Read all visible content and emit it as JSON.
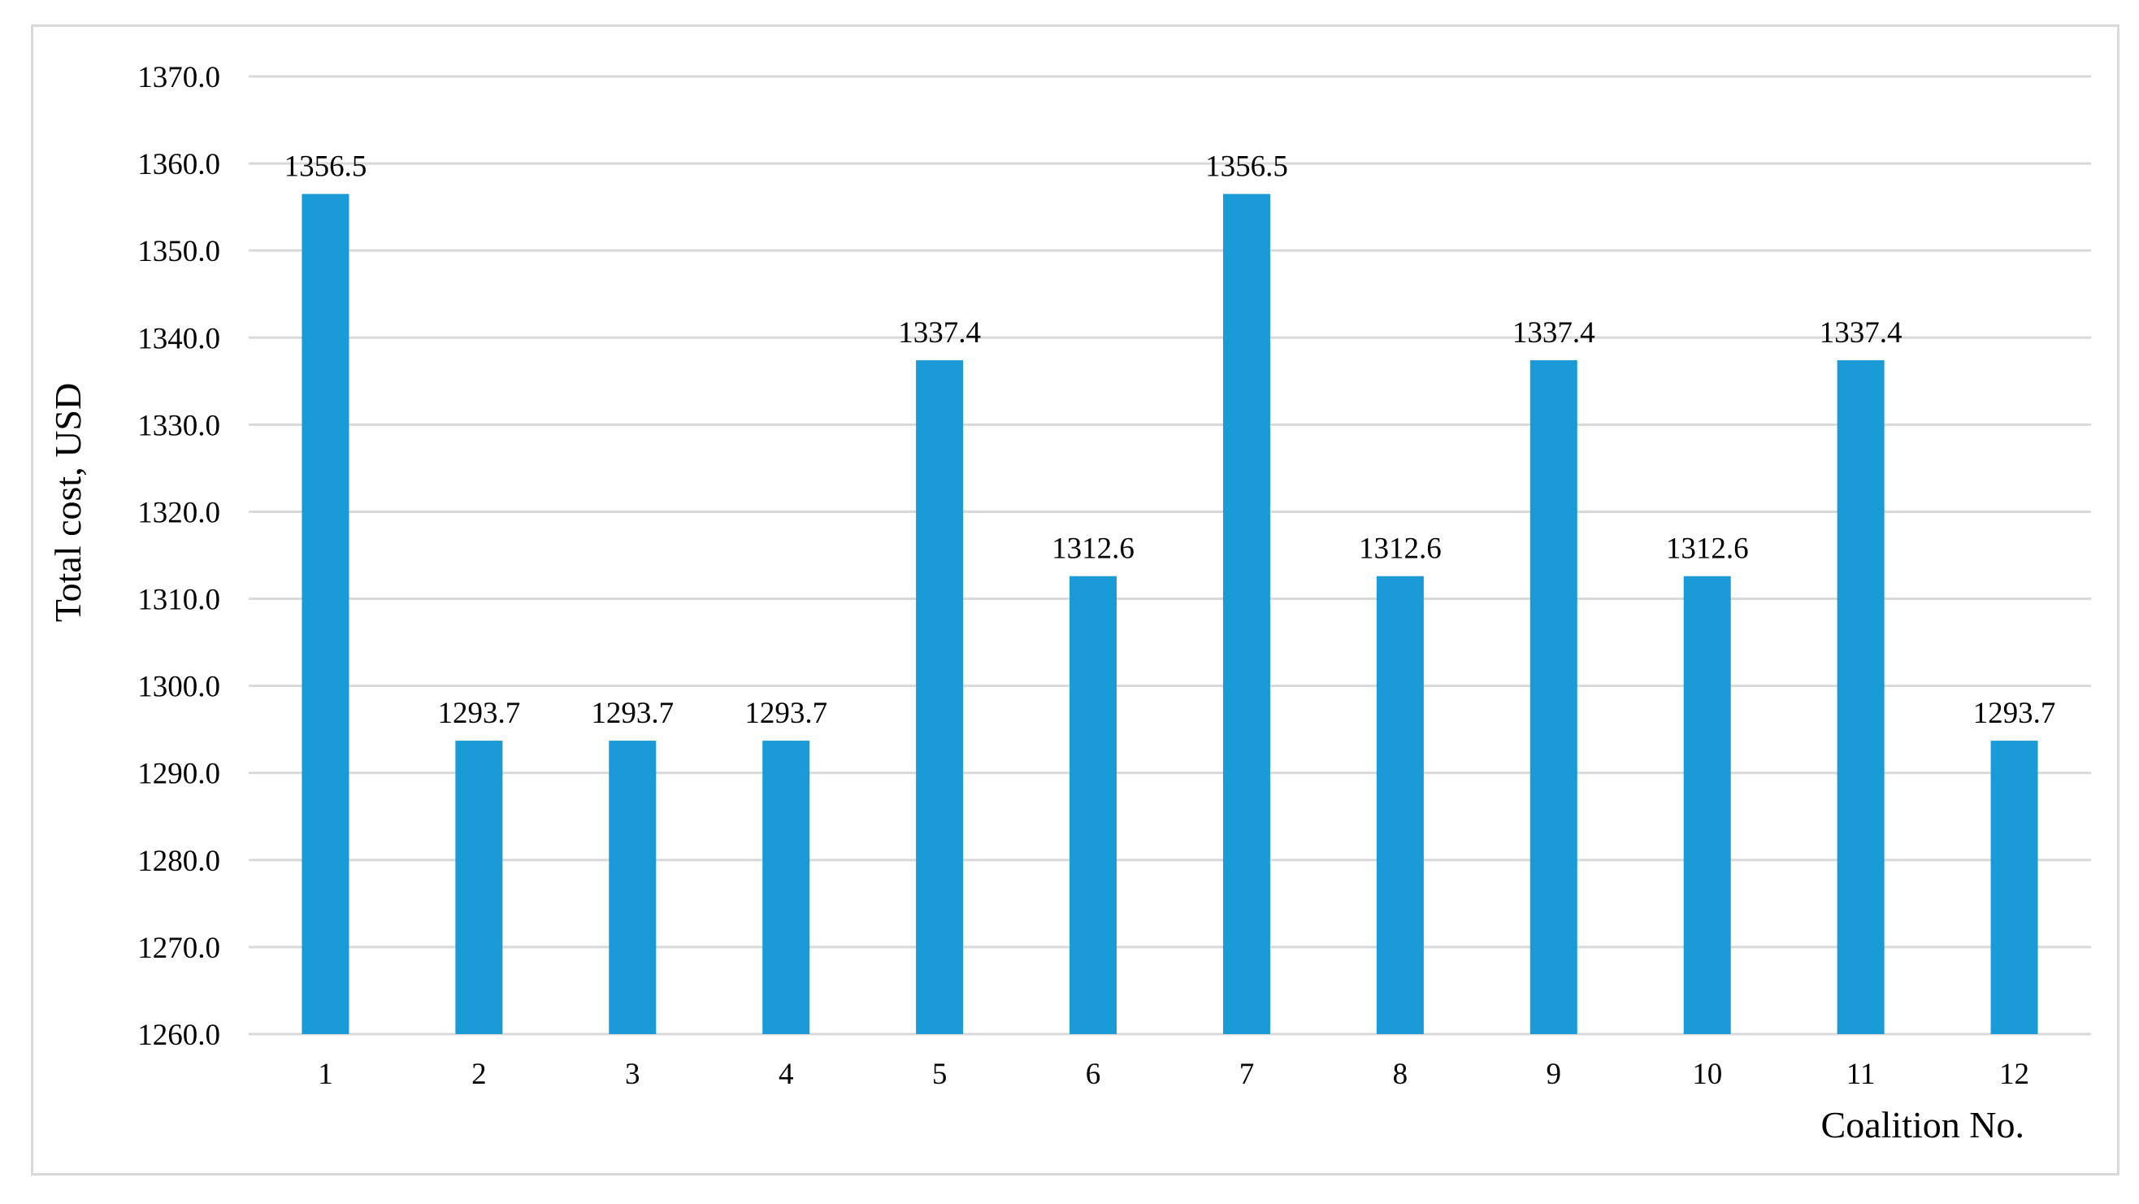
{
  "chart_data": {
    "type": "bar",
    "title": "",
    "xlabel": "Coalition No.",
    "ylabel": "Total cost, USD",
    "categories": [
      "1",
      "2",
      "3",
      "4",
      "5",
      "6",
      "7",
      "8",
      "9",
      "10",
      "11",
      "12"
    ],
    "values": [
      1356.5,
      1293.7,
      1293.7,
      1293.7,
      1337.4,
      1312.6,
      1356.5,
      1312.6,
      1337.4,
      1312.6,
      1337.4,
      1293.7
    ],
    "data_labels": [
      "1356.5",
      "1293.7",
      "1293.7",
      "1293.7",
      "1337.4",
      "1312.6",
      "1356.5",
      "1312.6",
      "1337.4",
      "1312.6",
      "1337.4",
      "1293.7"
    ],
    "ylim": [
      1260,
      1370
    ],
    "ytick_values": [
      1260,
      1270,
      1280,
      1290,
      1300,
      1310,
      1320,
      1330,
      1340,
      1350,
      1360,
      1370
    ],
    "ytick_labels": [
      "1260.0",
      "1270.0",
      "1280.0",
      "1290.0",
      "1300.0",
      "1310.0",
      "1320.0",
      "1330.0",
      "1340.0",
      "1350.0",
      "1360.0",
      "1370.0"
    ],
    "grid": true,
    "legend": "none",
    "bar_color": "#1a9bd7",
    "grid_color": "#d9d9d9"
  }
}
